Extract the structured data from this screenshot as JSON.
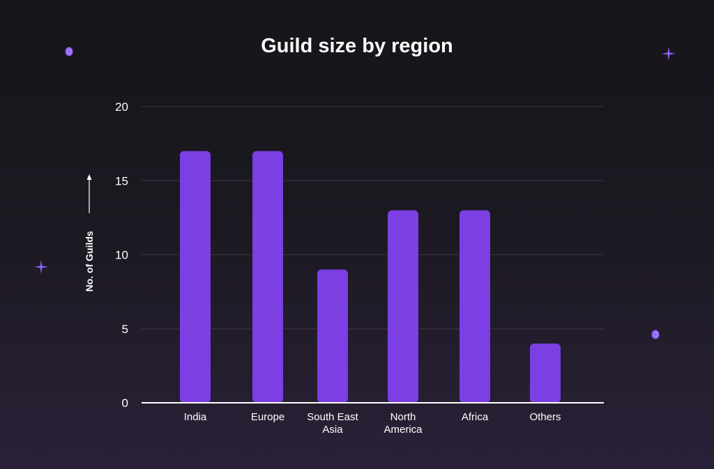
{
  "chart_data": {
    "type": "bar",
    "title": "Guild size by region",
    "xlabel": "",
    "ylabel": "No. of Guilds",
    "categories": [
      "India",
      "Europe",
      "South East Asia",
      "North America",
      "Africa",
      "Others"
    ],
    "category_lines": [
      [
        "India"
      ],
      [
        "Europe"
      ],
      [
        "South East",
        "Asia"
      ],
      [
        "North",
        "America"
      ],
      [
        "Africa"
      ],
      [
        "Others"
      ]
    ],
    "values": [
      17,
      17,
      9,
      13,
      13,
      4
    ],
    "ylim": [
      0,
      20
    ],
    "yticks": [
      0,
      5,
      10,
      15,
      20
    ],
    "grid": true,
    "legend": "none"
  },
  "colors": {
    "bar": "#7b3fe4",
    "grid": "#3a3740",
    "axis": "#ffffff",
    "accent_decoration": "#8b5cf6"
  },
  "decorations": {
    "icons": [
      "coin-icon",
      "sparkle-icon"
    ]
  }
}
